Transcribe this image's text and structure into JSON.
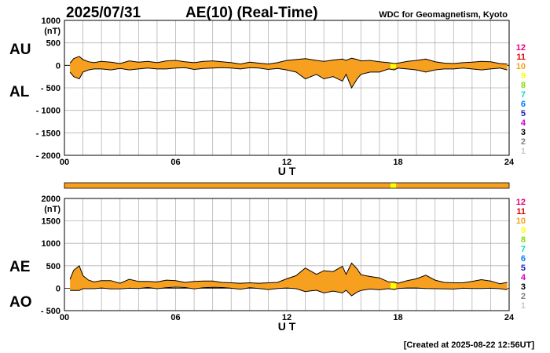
{
  "header": {
    "date": "2025/07/31",
    "title": "AE(10) (Real-Time)",
    "source": "WDC for Geomagnetism, Kyoto",
    "footer": "[Created at 2025-08-22 12:56UT]"
  },
  "colors": {
    "fill": "#f7a020",
    "line": "#000000",
    "grid": "#b4b4b4",
    "highlight": "#ffff00"
  },
  "chart_data": [
    {
      "type": "area",
      "name": "AU/AL",
      "unit_label": "(nT)",
      "side_labels": [
        "AU",
        "AL"
      ],
      "xlabel": "U T",
      "xlim": [
        0,
        24
      ],
      "ylim": [
        -2000,
        1000
      ],
      "xticks": [
        0,
        6,
        12,
        18,
        24
      ],
      "xtick_labels": [
        "00",
        "06",
        "12",
        "18",
        "24"
      ],
      "yticks": [
        1000,
        500,
        0,
        -500,
        -1000,
        -1500,
        -2000
      ],
      "ytick_labels": [
        "1000",
        "500",
        "0",
        "- 500",
        "- 1000",
        "- 1500",
        "- 2000"
      ],
      "grid": true,
      "x": [
        0.3,
        0.5,
        0.8,
        1.0,
        1.3,
        1.6,
        2.0,
        2.5,
        3.0,
        3.5,
        4.0,
        4.5,
        5.0,
        5.5,
        6.0,
        6.5,
        7.0,
        7.5,
        8.0,
        8.5,
        9.0,
        9.5,
        10.0,
        10.5,
        11.0,
        11.5,
        12.0,
        12.5,
        13.0,
        13.3,
        13.6,
        14.0,
        14.5,
        15.0,
        15.2,
        15.5,
        15.8,
        16.0,
        16.5,
        17.0,
        17.5,
        17.8,
        18.0,
        18.5,
        19.0,
        19.5,
        20.0,
        20.5,
        21.0,
        21.5,
        22.0,
        22.5,
        23.0,
        23.5,
        23.9
      ],
      "series": [
        {
          "name": "AU",
          "values": [
            50,
            150,
            200,
            130,
            80,
            60,
            90,
            70,
            40,
            100,
            70,
            90,
            60,
            100,
            110,
            80,
            60,
            90,
            100,
            80,
            60,
            30,
            70,
            50,
            30,
            60,
            110,
            130,
            150,
            130,
            110,
            90,
            120,
            140,
            110,
            160,
            130,
            100,
            110,
            80,
            60,
            40,
            50,
            90,
            110,
            140,
            80,
            50,
            40,
            60,
            70,
            90,
            80,
            40,
            30
          ]
        },
        {
          "name": "AL",
          "values": [
            -150,
            -250,
            -300,
            -150,
            -100,
            -80,
            -80,
            -100,
            -70,
            -100,
            -80,
            -60,
            -80,
            -80,
            -60,
            -50,
            -90,
            -70,
            -60,
            -50,
            -60,
            -80,
            -50,
            -60,
            -90,
            -70,
            -100,
            -150,
            -300,
            -250,
            -200,
            -300,
            -250,
            -350,
            -200,
            -500,
            -300,
            -200,
            -150,
            -150,
            -80,
            -100,
            -60,
            -80,
            -100,
            -150,
            -100,
            -80,
            -80,
            -60,
            -80,
            -100,
            -80,
            -60,
            -100
          ]
        }
      ]
    },
    {
      "type": "area",
      "name": "AE/AO",
      "unit_label": "(nT)",
      "side_labels": [
        "AE",
        "AO"
      ],
      "xlabel": "U T",
      "xlim": [
        0,
        24
      ],
      "ylim": [
        -500,
        2000
      ],
      "xticks": [
        0,
        6,
        12,
        18,
        24
      ],
      "xtick_labels": [
        "00",
        "06",
        "12",
        "18",
        "24"
      ],
      "yticks": [
        2000,
        1500,
        1000,
        500,
        0,
        -500
      ],
      "ytick_labels": [
        "2000",
        "1500",
        "1000",
        "500",
        "0",
        "- 500"
      ],
      "grid": true,
      "x": [
        0.3,
        0.5,
        0.8,
        1.0,
        1.3,
        1.6,
        2.0,
        2.5,
        3.0,
        3.5,
        4.0,
        4.5,
        5.0,
        5.5,
        6.0,
        6.5,
        7.0,
        7.5,
        8.0,
        8.5,
        9.0,
        9.5,
        10.0,
        10.5,
        11.0,
        11.5,
        12.0,
        12.5,
        13.0,
        13.3,
        13.6,
        14.0,
        14.5,
        15.0,
        15.2,
        15.5,
        15.8,
        16.0,
        16.5,
        17.0,
        17.5,
        17.8,
        18.0,
        18.5,
        19.0,
        19.5,
        20.0,
        20.5,
        21.0,
        21.5,
        22.0,
        22.5,
        23.0,
        23.5,
        23.9
      ],
      "series": [
        {
          "name": "AE",
          "values": [
            200,
            400,
            500,
            280,
            180,
            140,
            170,
            170,
            110,
            200,
            150,
            150,
            140,
            180,
            170,
            130,
            150,
            160,
            160,
            130,
            120,
            110,
            120,
            110,
            120,
            130,
            210,
            280,
            450,
            380,
            310,
            390,
            370,
            490,
            310,
            560,
            430,
            300,
            260,
            230,
            140,
            140,
            110,
            170,
            210,
            290,
            180,
            130,
            120,
            120,
            150,
            190,
            160,
            100,
            130
          ]
        },
        {
          "name": "AO",
          "values": [
            -50,
            -50,
            -50,
            -10,
            -10,
            -10,
            5,
            -15,
            -15,
            0,
            -5,
            15,
            -10,
            10,
            25,
            15,
            -15,
            10,
            20,
            15,
            0,
            -25,
            10,
            -5,
            -30,
            -5,
            5,
            -10,
            -75,
            -60,
            -45,
            -105,
            -65,
            -105,
            -45,
            -170,
            -85,
            -50,
            -20,
            -35,
            -10,
            -30,
            -5,
            5,
            5,
            -5,
            -10,
            -15,
            -20,
            0,
            -5,
            -5,
            0,
            -10,
            -35
          ]
        }
      ]
    }
  ],
  "status_bar": {
    "segments": [
      {
        "start": 0,
        "end": 17.6,
        "color": "#f7a020"
      },
      {
        "start": 17.6,
        "end": 17.9,
        "color": "#ffff00"
      },
      {
        "start": 17.9,
        "end": 24,
        "color": "#f7a020"
      }
    ]
  },
  "legend": {
    "items": [
      {
        "label": "12",
        "color": "#e8007c"
      },
      {
        "label": "11",
        "color": "#e00000"
      },
      {
        "label": "10",
        "color": "#f7a020"
      },
      {
        "label": "9",
        "color": "#ffff00"
      },
      {
        "label": "8",
        "color": "#80e000"
      },
      {
        "label": "7",
        "color": "#00e0c0"
      },
      {
        "label": "6",
        "color": "#0080ff"
      },
      {
        "label": "5",
        "color": "#2020c0"
      },
      {
        "label": "4",
        "color": "#d000d0"
      },
      {
        "label": "3",
        "color": "#000000"
      },
      {
        "label": "2",
        "color": "#808080"
      },
      {
        "label": "1",
        "color": "#c8c8c8"
      }
    ]
  }
}
